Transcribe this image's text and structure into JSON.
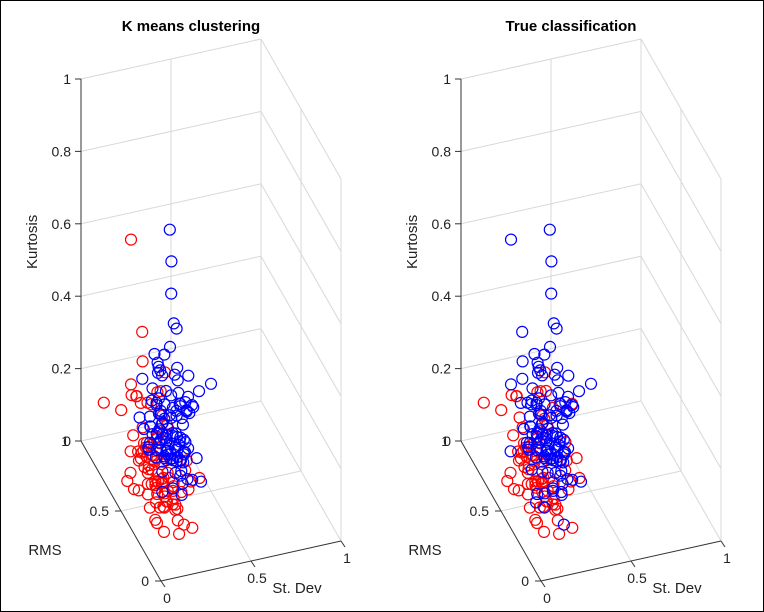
{
  "chart_data": [
    {
      "type": "scatter",
      "title": "K means clustering",
      "xlabel": "St. Dev",
      "ylabel": "RMS",
      "zlabel": "Kurtosis",
      "xlim": [
        0,
        1
      ],
      "ylim": [
        0,
        1
      ],
      "zlim": [
        0,
        1
      ],
      "xticks": [
        "0",
        "0.5",
        "1"
      ],
      "yticks": [
        "0",
        "0.5",
        "1"
      ],
      "zticks": [
        "0",
        "0.2",
        "0.4",
        "0.6",
        "0.8",
        "1"
      ],
      "grid": true,
      "series": [
        {
          "color": "#ff0000",
          "values": "red-cluster"
        },
        {
          "color": "#0000ff",
          "values": "blue-cluster"
        }
      ]
    },
    {
      "type": "scatter",
      "title": "True classification",
      "xlabel": "St. Dev",
      "ylabel": "RMS",
      "zlabel": "Kurtosis",
      "xlim": [
        0,
        1
      ],
      "ylim": [
        0,
        1
      ],
      "zlim": [
        0,
        1
      ],
      "xticks": [
        "0",
        "0.5",
        "1"
      ],
      "yticks": [
        "0",
        "0.5",
        "1"
      ],
      "zticks": [
        "0",
        "0.2",
        "0.4",
        "0.6",
        "0.8",
        "1"
      ],
      "grid": true,
      "series": [
        {
          "color": "#ff0000",
          "values": "red-class"
        },
        {
          "color": "#0000ff",
          "values": "blue-class"
        }
      ]
    }
  ]
}
